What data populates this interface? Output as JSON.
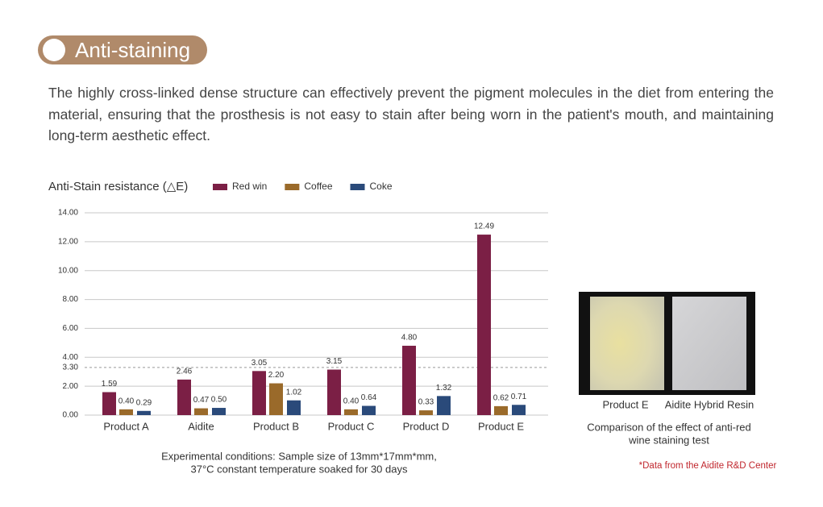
{
  "header": {
    "title": "Anti-staining"
  },
  "paragraph": "The highly cross-linked dense structure can effectively prevent the pigment molecules in the diet from entering the material, ensuring that the prosthesis is not easy to stain after being worn in the patient's mouth, and maintaining long-term aesthetic effect.",
  "chart_data": {
    "type": "bar",
    "title": "Anti-Stain resistance (△E)",
    "categories": [
      "Product A",
      "Aidite",
      "Product B",
      "Product C",
      "Product D",
      "Product E"
    ],
    "series": [
      {
        "name": "Red win",
        "color": "#7b1f45",
        "values": [
          1.59,
          2.46,
          3.05,
          3.15,
          4.8,
          12.49
        ],
        "value_labels": [
          "1.59",
          "2.46",
          "3.05",
          "3.15",
          "4.80",
          "12.49"
        ]
      },
      {
        "name": "Coffee",
        "color": "#9a6a2a",
        "values": [
          0.4,
          0.47,
          2.2,
          0.4,
          0.33,
          0.62
        ],
        "value_labels": [
          "0.40",
          "0.47",
          "2.20",
          "0.40",
          "0.33",
          "0.62"
        ]
      },
      {
        "name": "Coke",
        "color": "#2a4a7a",
        "values": [
          0.29,
          0.5,
          1.02,
          0.64,
          1.32,
          0.71
        ],
        "value_labels": [
          "0.29",
          "0.50",
          "1.02",
          "0.64",
          "1.32",
          "0.71"
        ]
      }
    ],
    "ylim": [
      0,
      14
    ],
    "yticks": [
      {
        "value": 0,
        "label": "0.00"
      },
      {
        "value": 2,
        "label": "2.00"
      },
      {
        "value": 4,
        "label": "4.00"
      },
      {
        "value": 6,
        "label": "6.00"
      },
      {
        "value": 8,
        "label": "8.00"
      },
      {
        "value": 10,
        "label": "10.00"
      },
      {
        "value": 12,
        "label": "12.00"
      },
      {
        "value": 14,
        "label": "14.00"
      }
    ],
    "reference_line": {
      "value": 3.3,
      "label": "3.30"
    },
    "grid": true,
    "notes": [
      "Experimental conditions: Sample size of 13mm*17mm*mm,",
      "37°C constant temperature soaked for 30 days"
    ]
  },
  "photo": {
    "labels": [
      "Product E",
      "Aidite Hybrid Resin"
    ],
    "caption": [
      "Comparison of the effect of anti-red",
      "wine staining test"
    ]
  },
  "source": "*Data from the Aidite R&D Center"
}
